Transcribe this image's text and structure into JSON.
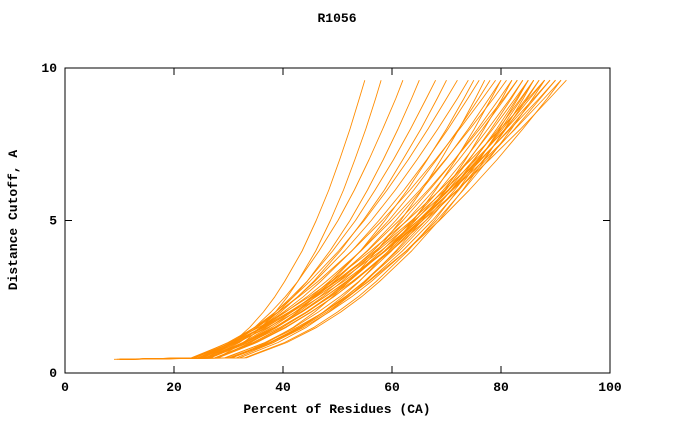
{
  "title": "R1056",
  "chart_data": {
    "type": "line",
    "title": "R1056",
    "xlabel": "Percent of Residues (CA)",
    "ylabel": "Distance Cutoff, A",
    "xlim": [
      0,
      100
    ],
    "ylim": [
      0,
      10
    ],
    "xticks": [
      0,
      20,
      40,
      60,
      80,
      100
    ],
    "yticks": [
      0,
      5,
      10
    ],
    "grid": false,
    "legend": false,
    "line_color": "#ff8c00",
    "axis_color": "#000000",
    "background_color": "#ffffff",
    "cutoffs_y": [
      0.45,
      0.5,
      1.0,
      1.5,
      2.0,
      2.5,
      3.0,
      4.0,
      5.0,
      6.0,
      7.0,
      8.0,
      9.0,
      9.6
    ],
    "series_x": [
      [
        9,
        26.3,
        30.8,
        33.9,
        36.4,
        38.5,
        40.3,
        43.5,
        46.1,
        48.4,
        50.4,
        52.3,
        54.0,
        55
      ],
      [
        10,
        28.1,
        32.8,
        36.0,
        38.6,
        40.8,
        42.7,
        46.0,
        48.7,
        51.1,
        53.2,
        55.2,
        57.0,
        58
      ],
      [
        10,
        25.9,
        31.0,
        34.8,
        37.8,
        40.4,
        42.7,
        46.6,
        50.1,
        53.1,
        55.8,
        58.3,
        60.7,
        62
      ],
      [
        9.5,
        26.5,
        32.0,
        35.9,
        39.1,
        41.9,
        44.4,
        48.6,
        52.3,
        55.5,
        58.4,
        61.1,
        63.6,
        65
      ],
      [
        10,
        25.3,
        31.0,
        35.2,
        38.6,
        41.6,
        44.4,
        49.1,
        53.3,
        56.9,
        60.3,
        63.4,
        66.3,
        68
      ],
      [
        10,
        25.9,
        31.7,
        36.0,
        39.6,
        42.7,
        45.6,
        50.5,
        54.7,
        58.6,
        62.0,
        65.3,
        68.3,
        70
      ],
      [
        10.5,
        24.5,
        30.4,
        34.8,
        38.6,
        41.9,
        44.9,
        50.2,
        54.9,
        59.1,
        63.0,
        66.6,
        70.0,
        72
      ],
      [
        10,
        24.6,
        30.7,
        35.3,
        39.2,
        42.7,
        45.8,
        51.3,
        56.2,
        60.6,
        64.6,
        68.4,
        72.0,
        74
      ],
      [
        11,
        27.9,
        34.1,
        38.8,
        42.6,
        45.9,
        48.9,
        54.2,
        58.7,
        62.8,
        66.5,
        70.0,
        73.2,
        75
      ],
      [
        10,
        25.1,
        31.3,
        36.1,
        40.1,
        43.7,
        46.9,
        52.6,
        57.6,
        62.2,
        66.4,
        70.3,
        73.9,
        76
      ],
      [
        10,
        30.5,
        37.1,
        41.9,
        45.8,
        49.1,
        52.1,
        57.2,
        61.6,
        65.5,
        69.0,
        72.3,
        75.3,
        77
      ],
      [
        11,
        26.3,
        32.6,
        37.5,
        41.6,
        45.2,
        48.5,
        54.2,
        59.4,
        64.0,
        68.2,
        72.2,
        75.9,
        78
      ],
      [
        10,
        23.6,
        29.9,
        34.9,
        39.1,
        42.9,
        46.4,
        52.6,
        58.2,
        63.3,
        68.0,
        72.4,
        76.6,
        79
      ],
      [
        10.5,
        26.4,
        32.9,
        38.0,
        42.2,
        46.0,
        49.4,
        55.4,
        60.7,
        65.4,
        69.9,
        74.0,
        77.8,
        80
      ],
      [
        10,
        31.5,
        38.3,
        43.3,
        47.4,
        50.9,
        54.0,
        59.3,
        63.9,
        68.0,
        71.7,
        75.1,
        78.2,
        80
      ],
      [
        11,
        24.8,
        31.2,
        36.2,
        40.5,
        44.4,
        47.9,
        54.3,
        59.9,
        65.1,
        69.8,
        74.3,
        78.6,
        81
      ],
      [
        10,
        26.4,
        33.2,
        38.5,
        42.9,
        46.7,
        50.2,
        56.5,
        62.0,
        66.9,
        71.5,
        75.7,
        79.7,
        82
      ],
      [
        10,
        32.1,
        39.1,
        44.3,
        48.4,
        52.0,
        55.2,
        60.7,
        65.5,
        69.7,
        73.5,
        76.9,
        80.2,
        82
      ],
      [
        11,
        25.2,
        31.8,
        36.9,
        41.4,
        45.4,
        49.0,
        55.5,
        61.3,
        66.6,
        71.5,
        76.1,
        80.5,
        83
      ],
      [
        10,
        26.7,
        33.6,
        38.9,
        43.3,
        47.3,
        50.8,
        57.1,
        62.7,
        67.7,
        72.3,
        76.6,
        80.7,
        83
      ],
      [
        10,
        29.6,
        36.7,
        42.1,
        46.5,
        50.4,
        53.9,
        59.9,
        65.2,
        69.9,
        74.2,
        78.2,
        81.9,
        84
      ],
      [
        11,
        27.7,
        34.6,
        39.9,
        44.3,
        48.3,
        51.8,
        58.1,
        63.7,
        68.7,
        73.3,
        77.6,
        81.7,
        84
      ],
      [
        10,
        33.0,
        40.3,
        45.7,
        50.0,
        53.8,
        57.1,
        62.9,
        67.8,
        72.1,
        76.1,
        79.7,
        83.1,
        85
      ],
      [
        10.5,
        27.5,
        34.5,
        39.9,
        44.5,
        48.5,
        52.1,
        58.6,
        64.3,
        69.4,
        74.1,
        78.5,
        82.6,
        85
      ],
      [
        11,
        30.6,
        37.7,
        43.1,
        47.5,
        51.4,
        54.9,
        60.9,
        66.2,
        70.9,
        75.2,
        79.2,
        82.9,
        85
      ],
      [
        10,
        30.1,
        37.5,
        43.0,
        47.5,
        51.5,
        55.0,
        61.3,
        66.7,
        71.5,
        75.9,
        80.0,
        83.8,
        86
      ],
      [
        11,
        28.1,
        35.2,
        40.6,
        45.2,
        49.3,
        52.9,
        59.4,
        65.1,
        70.3,
        75.0,
        79.5,
        83.6,
        86
      ],
      [
        10,
        30.4,
        37.8,
        43.4,
        48.0,
        52.0,
        55.6,
        61.9,
        67.4,
        72.3,
        76.8,
        80.9,
        84.8,
        87
      ],
      [
        10,
        27.6,
        34.9,
        40.4,
        45.1,
        49.3,
        53.0,
        59.7,
        65.6,
        70.9,
        75.8,
        80.3,
        84.6,
        87
      ],
      [
        11,
        26.2,
        33.2,
        38.7,
        43.5,
        47.7,
        51.6,
        58.6,
        64.8,
        70.5,
        75.7,
        80.7,
        85.3,
        88
      ],
      [
        10,
        23.2,
        30.1,
        35.6,
        40.4,
        44.8,
        48.8,
        56.1,
        62.8,
        68.8,
        74.5,
        79.9,
        85.0,
        88
      ],
      [
        10,
        30.6,
        38.2,
        43.8,
        48.5,
        52.6,
        56.2,
        62.6,
        68.2,
        73.1,
        77.7,
        81.9,
        85.8,
        88
      ],
      [
        10,
        25.6,
        32.8,
        38.5,
        43.3,
        47.7,
        51.7,
        58.8,
        65.2,
        71.0,
        76.4,
        81.5,
        86.2,
        89
      ],
      [
        10.5,
        23.8,
        30.7,
        36.3,
        41.1,
        45.5,
        49.6,
        56.9,
        63.6,
        69.7,
        75.4,
        80.9,
        86.0,
        89
      ],
      [
        10,
        23.6,
        30.6,
        36.3,
        41.2,
        45.7,
        49.8,
        57.3,
        64.1,
        70.3,
        76.2,
        81.7,
        87.0,
        90
      ],
      [
        11,
        26.6,
        33.8,
        39.5,
        44.3,
        48.7,
        52.7,
        59.8,
        66.2,
        72.0,
        77.4,
        82.5,
        87.2,
        90
      ],
      [
        10,
        23.8,
        30.8,
        36.6,
        41.6,
        46.1,
        50.3,
        57.9,
        64.8,
        71.1,
        77.0,
        82.6,
        87.9,
        91
      ],
      [
        11,
        29.3,
        36.8,
        42.6,
        47.5,
        51.8,
        55.7,
        62.6,
        68.7,
        74.2,
        79.3,
        84.0,
        88.5,
        91
      ],
      [
        10.5,
        24.3,
        31.5,
        37.3,
        42.3,
        46.8,
        51.1,
        58.7,
        65.6,
        72.0,
        77.9,
        83.6,
        88.9,
        92
      ],
      [
        10,
        33.3,
        40.7,
        46.2,
        50.6,
        54.4,
        57.7,
        63.6,
        68.6,
        73.0,
        77.0,
        80.7,
        84.1,
        86
      ]
    ]
  }
}
